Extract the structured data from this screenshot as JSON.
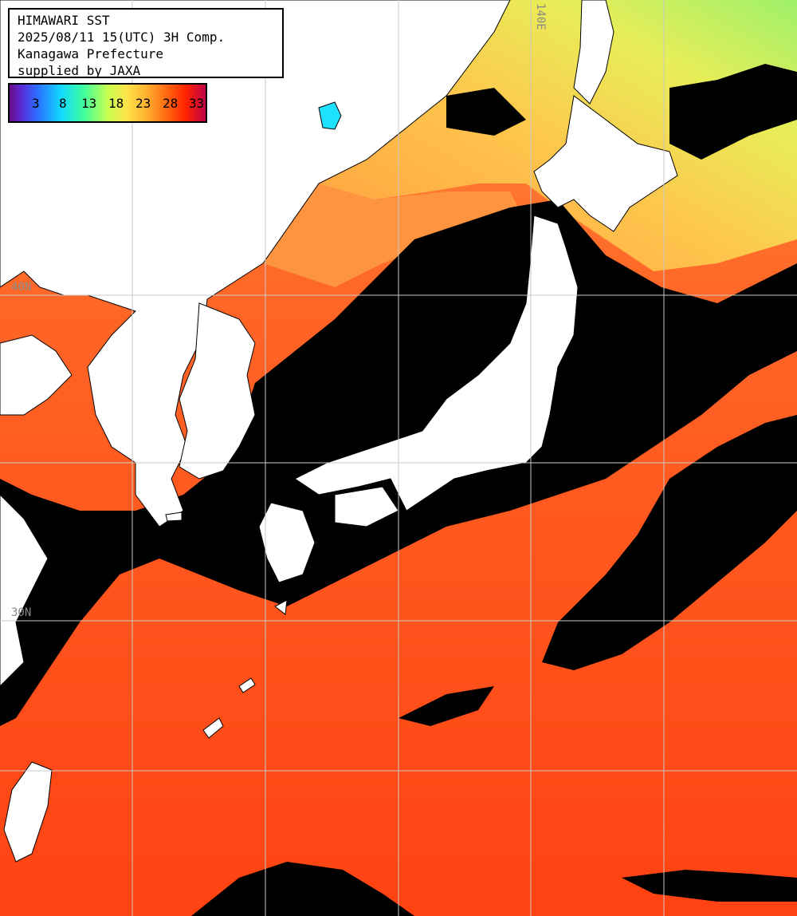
{
  "header": {
    "line1": "HIMAWARI SST",
    "line2": "2025/08/11 15(UTC) 3H Comp.",
    "line3": "Kanagawa Prefecture",
    "line4": "supplied by JAXA"
  },
  "legend": {
    "ticks": [
      "3",
      "8",
      "13",
      "18",
      "23",
      "28",
      "33"
    ]
  },
  "edge_labels": {
    "left_top": "40N",
    "left_bottom": "30N",
    "top_right": "140E"
  },
  "colors": {
    "land": "#ffffff",
    "cloud": "#000000",
    "warm_sea": "#ff4a12",
    "mid_sea": "#ff7a30",
    "cool_sea": "#ffb84a",
    "cold_sea": "#b8f060",
    "grid": "#c8c8c8"
  }
}
